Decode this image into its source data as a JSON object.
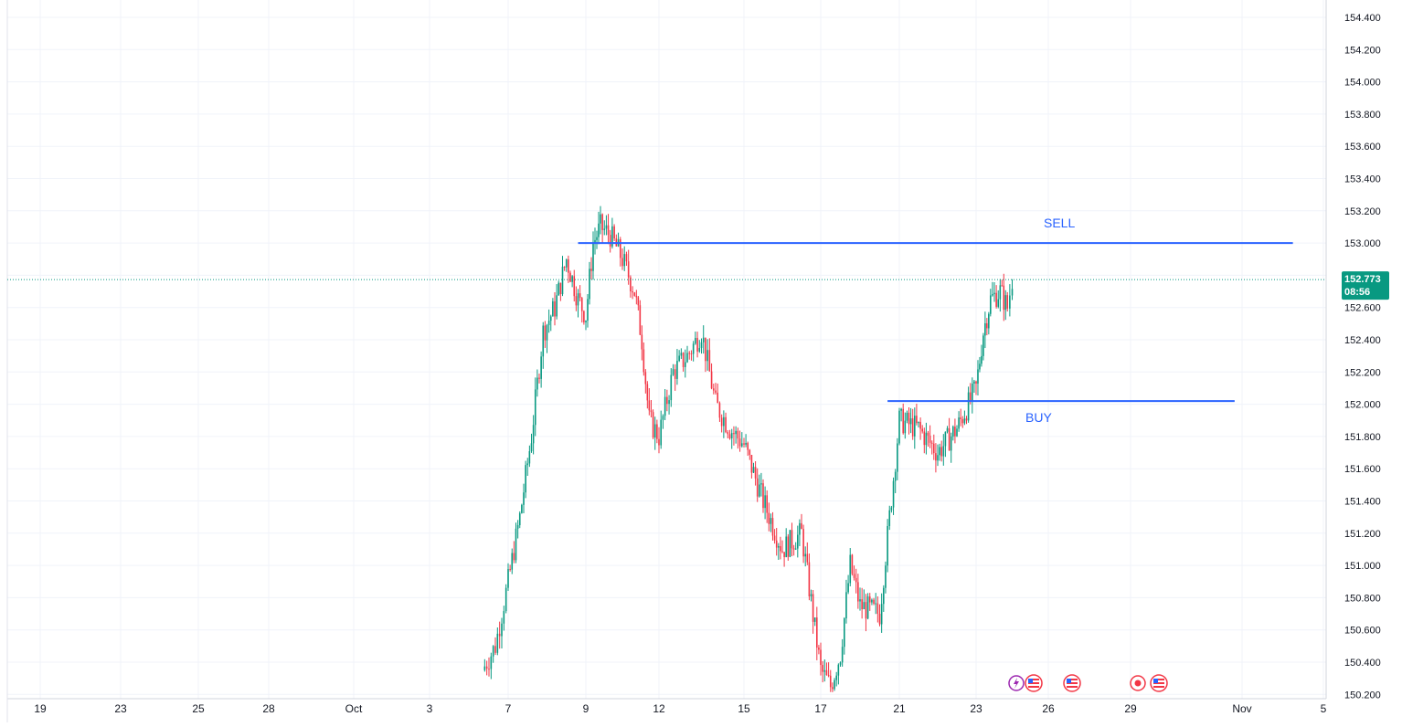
{
  "chart_data": {
    "type": "candlestick",
    "symbol_note": "",
    "x_ticks": [
      "19",
      "23",
      "25",
      "28",
      "Oct",
      "3",
      "7",
      "9",
      "12",
      "15",
      "17",
      "21",
      "23",
      "26",
      "29",
      "Nov",
      "5"
    ],
    "y_ticks": [
      "154.400",
      "154.200",
      "154.000",
      "153.800",
      "153.600",
      "153.400",
      "153.200",
      "153.000",
      "152.800",
      "152.600",
      "152.400",
      "152.200",
      "152.000",
      "151.800",
      "151.600",
      "151.400",
      "151.200",
      "151.000",
      "150.800",
      "150.600",
      "150.400",
      "150.200"
    ],
    "ylim": [
      150.18,
      154.53
    ],
    "grid": true,
    "price_path": [
      {
        "x": "Oct 6",
        "y": 150.35
      },
      {
        "x": "Oct 6.5",
        "y": 150.5
      },
      {
        "x": "Oct 7",
        "y": 150.9
      },
      {
        "x": "Oct 7.3",
        "y": 151.3
      },
      {
        "x": "Oct 7.6",
        "y": 151.8
      },
      {
        "x": "Oct 7.9",
        "y": 152.45
      },
      {
        "x": "Oct 8.2",
        "y": 152.6
      },
      {
        "x": "Oct 8.5",
        "y": 152.9
      },
      {
        "x": "Oct 8.8",
        "y": 152.65
      },
      {
        "x": "Oct 9",
        "y": 152.55
      },
      {
        "x": "Oct 9.3",
        "y": 153.0
      },
      {
        "x": "Oct 9.6",
        "y": 153.1
      },
      {
        "x": "Oct 10",
        "y": 153.05
      },
      {
        "x": "Oct 10.5",
        "y": 152.9
      },
      {
        "x": "Oct 11",
        "y": 152.7
      },
      {
        "x": "Oct 11.3",
        "y": 152.4
      },
      {
        "x": "Oct 11.6",
        "y": 151.9
      },
      {
        "x": "Oct 12",
        "y": 151.8
      },
      {
        "x": "Oct 12.5",
        "y": 152.2
      },
      {
        "x": "Oct 13",
        "y": 152.3
      },
      {
        "x": "Oct 13.5",
        "y": 152.45
      },
      {
        "x": "Oct 14",
        "y": 152.0
      },
      {
        "x": "Oct 14.5",
        "y": 151.85
      },
      {
        "x": "Oct 15",
        "y": 151.75
      },
      {
        "x": "Oct 15.5",
        "y": 151.4
      },
      {
        "x": "Oct 16",
        "y": 151.1
      },
      {
        "x": "Oct 16.5",
        "y": 151.2
      },
      {
        "x": "Oct 17",
        "y": 150.35
      },
      {
        "x": "Oct 17.5",
        "y": 150.25
      },
      {
        "x": "Oct 18",
        "y": 150.45
      },
      {
        "x": "Oct 18.5",
        "y": 151.0
      },
      {
        "x": "Oct 19",
        "y": 150.75
      },
      {
        "x": "Oct 20",
        "y": 150.7
      },
      {
        "x": "Oct 20.5",
        "y": 151.3
      },
      {
        "x": "Oct 21",
        "y": 151.9
      },
      {
        "x": "Oct 21.5",
        "y": 151.85
      },
      {
        "x": "Oct 22",
        "y": 151.7
      },
      {
        "x": "Oct 22.5",
        "y": 151.85
      },
      {
        "x": "Oct 23",
        "y": 152.1
      },
      {
        "x": "Oct 23.3",
        "y": 152.45
      },
      {
        "x": "Oct 23.6",
        "y": 152.65
      },
      {
        "x": "Oct 24",
        "y": 152.7
      },
      {
        "x": "Oct 24.3",
        "y": 152.6
      },
      {
        "x": "Oct 24.5",
        "y": 152.773
      }
    ],
    "lines": [
      {
        "label": "SELL",
        "price": 153.0,
        "x_from": "Oct 8.8",
        "x_to": "Nov 3.5"
      },
      {
        "label": "BUY",
        "price": 152.02,
        "x_from": "Oct 20.4",
        "x_to": "Nov 0.8"
      }
    ],
    "current_price": {
      "value": "152.773",
      "countdown": "08:56"
    },
    "colors": {
      "up": "#089981",
      "down": "#f23645",
      "line": "#2962ff",
      "tag": "#089981",
      "grid": "#f0f3fa"
    }
  },
  "labels": {
    "sell": "SELL",
    "buy": "BUY",
    "price_tag_value": "152.773",
    "price_tag_time": "08:56"
  },
  "event_icons": [
    "flash-icon",
    "us-flag-icon",
    "us-flag-icon",
    "record-icon",
    "us-flag-icon"
  ]
}
